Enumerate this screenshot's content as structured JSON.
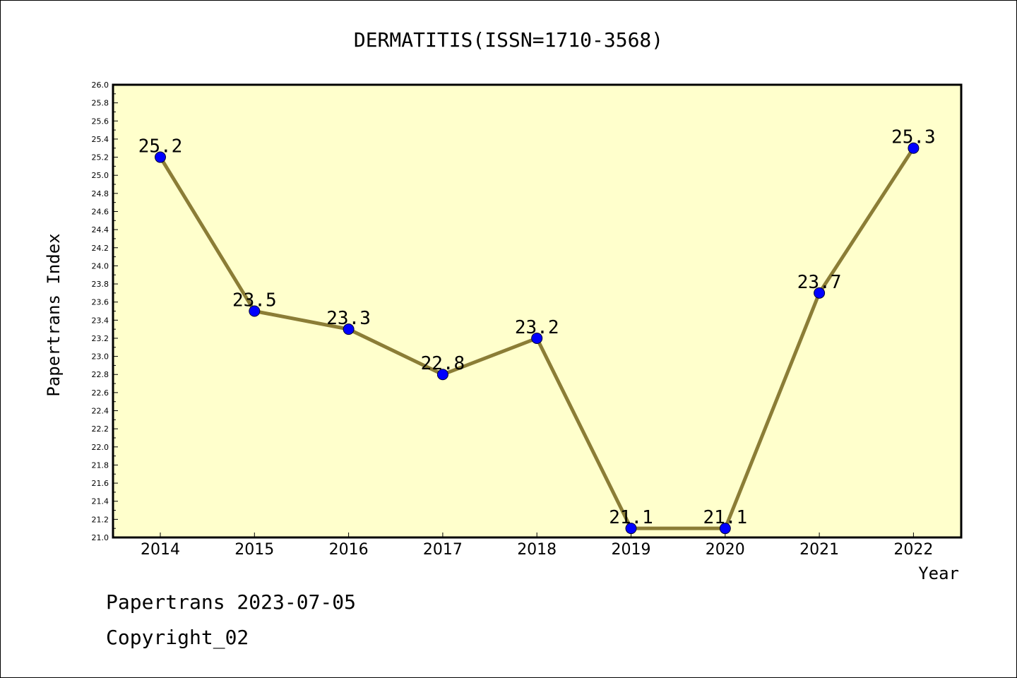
{
  "chart_data": {
    "type": "line",
    "title": "DERMATITIS(ISSN=1710-3568)",
    "xlabel": "Year",
    "ylabel": "Papertrans Index",
    "categories": [
      "2014",
      "2015",
      "2016",
      "2017",
      "2018",
      "2019",
      "2020",
      "2021",
      "2022"
    ],
    "values": [
      25.2,
      23.5,
      23.3,
      22.8,
      23.2,
      21.1,
      21.1,
      23.7,
      25.3
    ],
    "data_labels": [
      "25.2",
      "23.5",
      "23.3",
      "22.8",
      "23.2",
      "21.1",
      "21.1",
      "23.7",
      "25.3"
    ],
    "ylim": [
      21.0,
      26.0
    ],
    "ytick_labels": [
      "21.0",
      "21.2",
      "21.4",
      "21.6",
      "21.8",
      "22.0",
      "22.2",
      "22.4",
      "22.6",
      "22.8",
      "23.0",
      "23.2",
      "23.4",
      "23.6",
      "23.8",
      "24.0",
      "24.2",
      "24.4",
      "24.6",
      "24.8",
      "25.0",
      "25.2",
      "25.4",
      "25.6",
      "25.8",
      "26.0"
    ],
    "grid": false,
    "colors": {
      "plot_background": "#ffffcc",
      "line": "#8b7d36",
      "marker": "#0000ff"
    }
  },
  "footer": {
    "date_line": "Papertrans 2023-07-05",
    "copyright": "Copyright_02"
  }
}
